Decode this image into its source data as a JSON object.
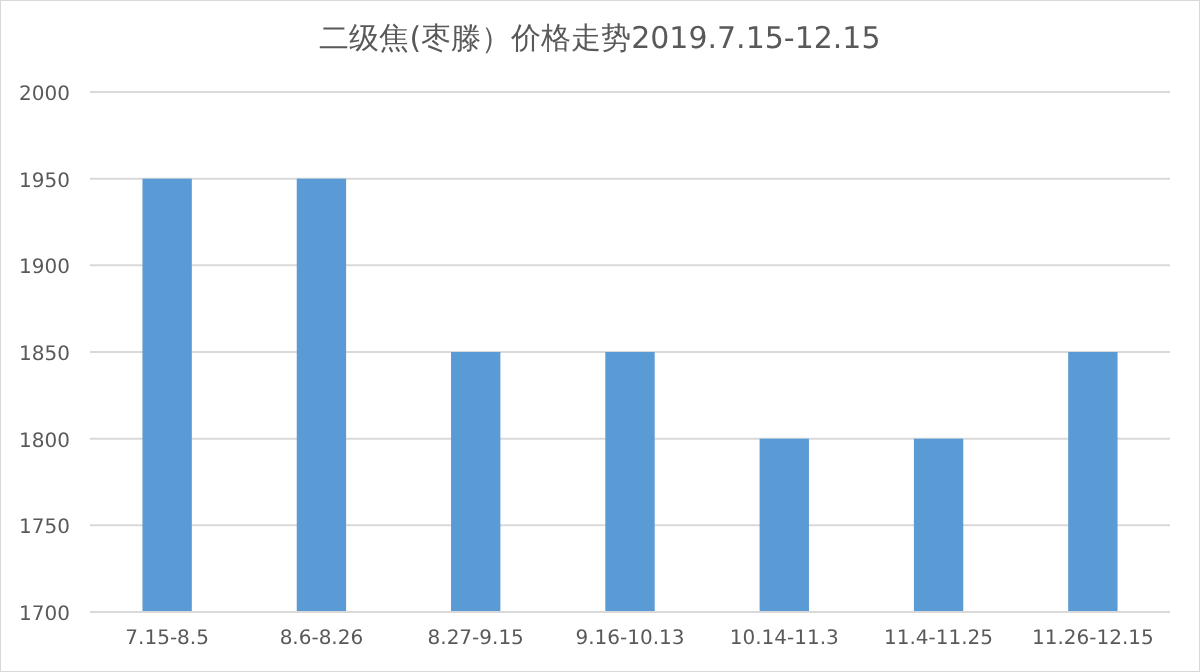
{
  "chart_data": {
    "type": "bar",
    "title": "二级焦(枣滕）价格走势2019.7.15-12.15",
    "categories": [
      "7.15-8.5",
      "8.6-8.26",
      "8.27-9.15",
      "9.16-10.13",
      "10.14-11.3",
      "11.4-11.25",
      "11.26-12.15"
    ],
    "values": [
      1950,
      1950,
      1850,
      1850,
      1800,
      1800,
      1850
    ],
    "color": "#5b9bd5",
    "ylim": [
      1700,
      2000
    ],
    "yticks": [
      1700,
      1750,
      1800,
      1850,
      1900,
      1950,
      2000
    ],
    "grid": "y"
  }
}
